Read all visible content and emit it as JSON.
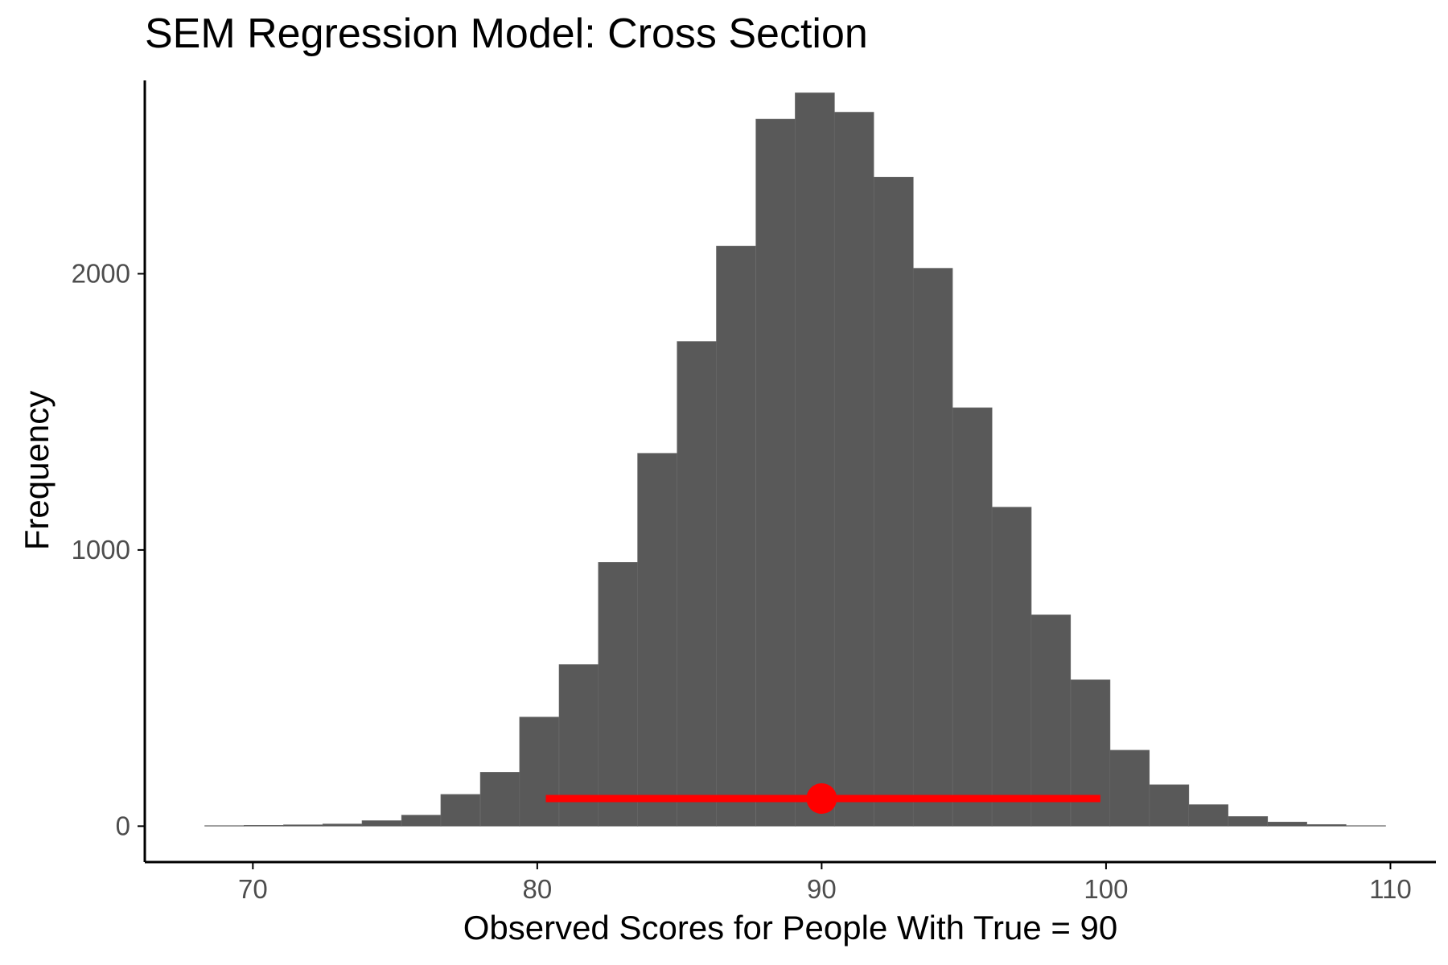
{
  "chart_data": {
    "type": "bar",
    "title": "SEM Regression Model: Cross Section",
    "xlabel": "Observed Scores for People With True = 90",
    "ylabel": "Frequency",
    "xlim": [
      66.2,
      111.6
    ],
    "ylim": [
      -130,
      2700
    ],
    "bin_width": 1.384,
    "x_ticks": [
      70,
      80,
      90,
      100,
      110
    ],
    "y_ticks": [
      0,
      1000,
      2000
    ],
    "bins": [
      {
        "x": 69.0,
        "count": 2
      },
      {
        "x": 70.38,
        "count": 3
      },
      {
        "x": 71.77,
        "count": 5
      },
      {
        "x": 73.15,
        "count": 8
      },
      {
        "x": 74.53,
        "count": 20
      },
      {
        "x": 75.92,
        "count": 40
      },
      {
        "x": 77.3,
        "count": 115
      },
      {
        "x": 78.69,
        "count": 195
      },
      {
        "x": 80.07,
        "count": 395
      },
      {
        "x": 81.46,
        "count": 585
      },
      {
        "x": 82.84,
        "count": 955
      },
      {
        "x": 84.22,
        "count": 1350
      },
      {
        "x": 85.61,
        "count": 1755
      },
      {
        "x": 86.99,
        "count": 2100
      },
      {
        "x": 88.38,
        "count": 2560
      },
      {
        "x": 89.76,
        "count": 2655
      },
      {
        "x": 91.14,
        "count": 2585
      },
      {
        "x": 92.53,
        "count": 2350
      },
      {
        "x": 93.91,
        "count": 2020
      },
      {
        "x": 95.3,
        "count": 1515
      },
      {
        "x": 96.68,
        "count": 1155
      },
      {
        "x": 98.06,
        "count": 765
      },
      {
        "x": 99.45,
        "count": 530
      },
      {
        "x": 100.83,
        "count": 275
      },
      {
        "x": 102.22,
        "count": 150
      },
      {
        "x": 103.6,
        "count": 78
      },
      {
        "x": 104.99,
        "count": 35
      },
      {
        "x": 106.37,
        "count": 15
      },
      {
        "x": 107.75,
        "count": 6
      },
      {
        "x": 109.14,
        "count": 2
      }
    ],
    "interval": {
      "mean": 90,
      "lower": 80.3,
      "upper": 99.8,
      "y": 100
    },
    "colors": {
      "bars": "#595959",
      "bar_edge": "#6a6a6a",
      "interval": "#ff0000",
      "axis": "#000000",
      "tick_text": "#4d4d4d"
    }
  }
}
